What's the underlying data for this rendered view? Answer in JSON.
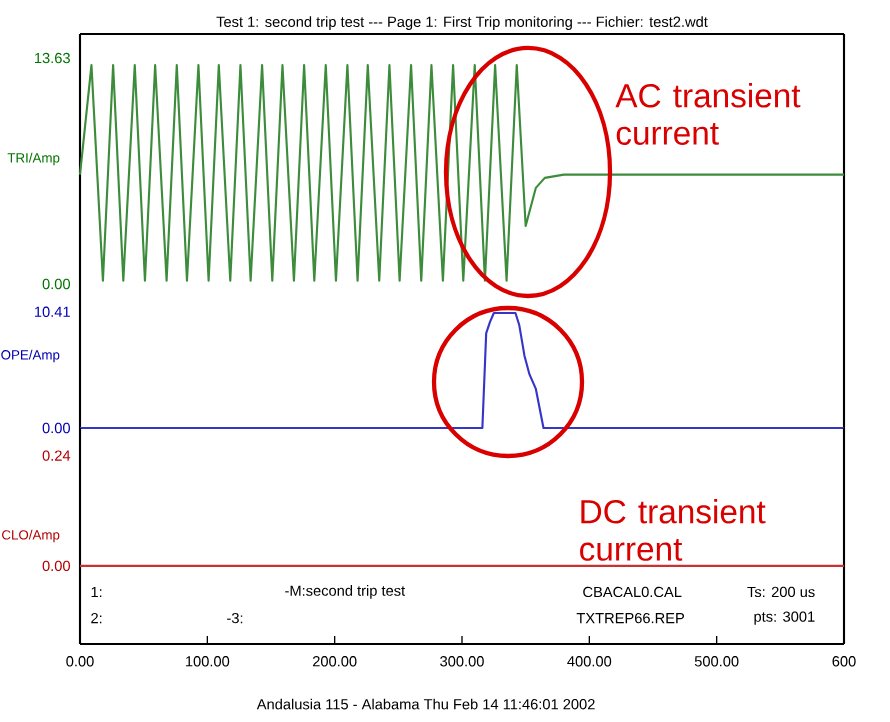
{
  "chart_data": [
    {
      "type": "line",
      "title": "Test 1: second trip test --- Page 1: First Trip monitoring --- Fichier: test2.wdt",
      "ylabel": "TRI/Amp",
      "xlim": [
        0,
        600
      ],
      "ylim": [
        0,
        15.08
      ],
      "yticks": [
        {
          "value": 0,
          "label": "0.00"
        },
        {
          "value": 13.63,
          "label": "13.63"
        }
      ],
      "tick_labels": "y",
      "annotations": [
        "AC transient current"
      ],
      "series": [
        {
          "color": "#3c8c3c",
          "x": [
            0,
            9,
            18,
            26,
            34,
            43,
            51,
            59,
            68,
            76,
            84,
            93,
            101,
            109,
            118,
            126,
            134,
            143,
            151,
            159,
            168,
            176,
            184,
            193,
            201,
            210,
            218,
            226,
            235,
            243,
            251,
            260,
            268,
            276,
            285,
            293,
            301,
            310,
            318,
            326,
            335,
            343,
            350,
            358,
            365,
            380,
            600
          ],
          "values": [
            6.6,
            13.2,
            0.2,
            13.2,
            0.2,
            13.2,
            0.2,
            13.2,
            0.2,
            13.2,
            0.2,
            13.2,
            0.2,
            13.2,
            0.2,
            13.2,
            0.2,
            13.2,
            0.2,
            13.2,
            0.2,
            13.2,
            0.2,
            13.2,
            0.2,
            13.2,
            0.2,
            13.2,
            0.2,
            13.2,
            0.2,
            13.2,
            0.2,
            13.2,
            0.2,
            13.2,
            0.2,
            13.2,
            0.2,
            13.2,
            0.2,
            13.2,
            3.5,
            5.8,
            6.4,
            6.6,
            6.6
          ]
        }
      ]
    },
    {
      "type": "line",
      "ylabel": "OPE/Amp",
      "xlim": [
        0,
        600
      ],
      "ylim": [
        0,
        12.9
      ],
      "yticks": [
        {
          "value": 0,
          "label": "0.00"
        },
        {
          "value": 10.41,
          "label": "10.41"
        }
      ],
      "tick_labels": "y",
      "annotations": [
        "DC transient current"
      ],
      "series": [
        {
          "color": "#3535c8",
          "x": [
            0,
            316,
            319,
            322,
            325,
            342,
            345,
            349,
            353,
            358,
            364,
            600
          ],
          "values": [
            0,
            0,
            8.5,
            9.5,
            10.3,
            10.3,
            9.2,
            6.5,
            4.8,
            3.5,
            0,
            0
          ]
        }
      ]
    },
    {
      "type": "line",
      "ylabel": "CLO/Amp",
      "xlim": [
        0,
        600
      ],
      "ylim": [
        -0.17,
        0.3
      ],
      "yticks": [
        {
          "value": 0,
          "label": "0.00"
        },
        {
          "value": 0.24,
          "label": "0.24"
        }
      ],
      "xticks": [
        {
          "value": 0,
          "label": "0.00"
        },
        {
          "value": 100,
          "label": "100.00"
        },
        {
          "value": 200,
          "label": "200.00"
        },
        {
          "value": 300,
          "label": "300.00"
        },
        {
          "value": 400,
          "label": "400.00"
        },
        {
          "value": 500,
          "label": "500.00"
        },
        {
          "value": 600,
          "label": "600"
        }
      ],
      "annotations": [
        "1:",
        "-M:second trip test",
        "CBACAL0.CAL",
        "Ts: 200 us",
        "2:",
        "-3:",
        "TXTREP66.REP",
        "pts: 3001",
        "Andalusia 115 - Alabama   Thu Feb 14 11:46:01 2002"
      ],
      "series": [
        {
          "color": "#c83232",
          "x": [
            0,
            600
          ],
          "values": [
            0,
            0
          ]
        }
      ]
    }
  ]
}
